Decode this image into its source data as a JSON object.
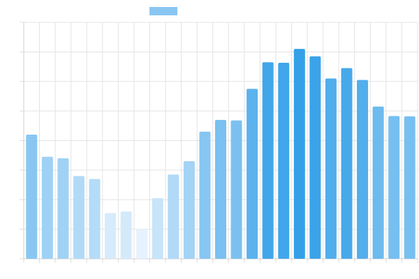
{
  "chart_data": {
    "type": "bar",
    "title": "",
    "xlabel": "",
    "ylabel": "",
    "categories": [
      "",
      "",
      "",
      "",
      "",
      "",
      "",
      "",
      "",
      "",
      "",
      "",
      "",
      "",
      "",
      "",
      "",
      "",
      "",
      "",
      "",
      "",
      "",
      "",
      ""
    ],
    "values": [
      42,
      34.5,
      34,
      28,
      27,
      15.5,
      16,
      10,
      20.5,
      28.5,
      33,
      43,
      47,
      46.8,
      57.5,
      66.5,
      66.3,
      71,
      68.5,
      61,
      64.5,
      60.5,
      51.5,
      48.3,
      48.2
    ],
    "ylim": [
      0,
      80
    ],
    "yticks": [
      0,
      10,
      20,
      30,
      40,
      50,
      60,
      70,
      80
    ],
    "grid": true,
    "legend": {
      "position": "top-center",
      "show_label": false,
      "color": "#8ac6f2"
    },
    "color_scale": {
      "low": "#e6f2fd",
      "high": "#34a0e8"
    }
  }
}
